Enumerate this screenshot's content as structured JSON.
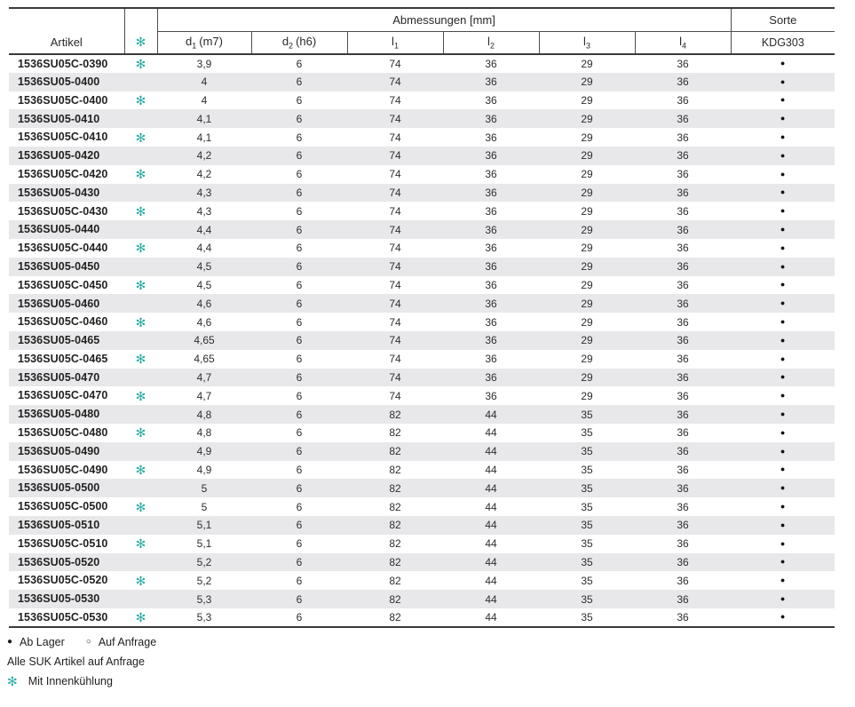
{
  "colors": {
    "accent_teal": "#2aada5",
    "stripe_gray": "#e8e8ea",
    "border_dark": "#3a3a3a"
  },
  "table": {
    "artikel_header": "Artikel",
    "cooling_symbol": "✻",
    "group_header": "Abmessungen [mm]",
    "sorte_header": "Sorte",
    "sorte_sub_header": "KDG303",
    "stock_symbol": "●",
    "dim_columns": [
      {
        "base": "d",
        "sub": "1",
        "suffix": "(m7)"
      },
      {
        "base": "d",
        "sub": "2",
        "suffix": "(h6)"
      },
      {
        "base": "l",
        "sub": "1",
        "suffix": ""
      },
      {
        "base": "l",
        "sub": "2",
        "suffix": ""
      },
      {
        "base": "l",
        "sub": "3",
        "suffix": ""
      },
      {
        "base": "l",
        "sub": "4",
        "suffix": ""
      }
    ],
    "rows": [
      {
        "artikel": "1536SU05C-0390",
        "cooled": true,
        "d1": "3,9",
        "d2": "6",
        "l1": "74",
        "l2": "36",
        "l3": "29",
        "l4": "36",
        "sorte": "stock"
      },
      {
        "artikel": "1536SU05-0400",
        "cooled": false,
        "d1": "4",
        "d2": "6",
        "l1": "74",
        "l2": "36",
        "l3": "29",
        "l4": "36",
        "sorte": "stock"
      },
      {
        "artikel": "1536SU05C-0400",
        "cooled": true,
        "d1": "4",
        "d2": "6",
        "l1": "74",
        "l2": "36",
        "l3": "29",
        "l4": "36",
        "sorte": "stock"
      },
      {
        "artikel": "1536SU05-0410",
        "cooled": false,
        "d1": "4,1",
        "d2": "6",
        "l1": "74",
        "l2": "36",
        "l3": "29",
        "l4": "36",
        "sorte": "stock"
      },
      {
        "artikel": "1536SU05C-0410",
        "cooled": true,
        "d1": "4,1",
        "d2": "6",
        "l1": "74",
        "l2": "36",
        "l3": "29",
        "l4": "36",
        "sorte": "stock"
      },
      {
        "artikel": "1536SU05-0420",
        "cooled": false,
        "d1": "4,2",
        "d2": "6",
        "l1": "74",
        "l2": "36",
        "l3": "29",
        "l4": "36",
        "sorte": "stock"
      },
      {
        "artikel": "1536SU05C-0420",
        "cooled": true,
        "d1": "4,2",
        "d2": "6",
        "l1": "74",
        "l2": "36",
        "l3": "29",
        "l4": "36",
        "sorte": "stock"
      },
      {
        "artikel": "1536SU05-0430",
        "cooled": false,
        "d1": "4,3",
        "d2": "6",
        "l1": "74",
        "l2": "36",
        "l3": "29",
        "l4": "36",
        "sorte": "stock"
      },
      {
        "artikel": "1536SU05C-0430",
        "cooled": true,
        "d1": "4,3",
        "d2": "6",
        "l1": "74",
        "l2": "36",
        "l3": "29",
        "l4": "36",
        "sorte": "stock"
      },
      {
        "artikel": "1536SU05-0440",
        "cooled": false,
        "d1": "4,4",
        "d2": "6",
        "l1": "74",
        "l2": "36",
        "l3": "29",
        "l4": "36",
        "sorte": "stock"
      },
      {
        "artikel": "1536SU05C-0440",
        "cooled": true,
        "d1": "4,4",
        "d2": "6",
        "l1": "74",
        "l2": "36",
        "l3": "29",
        "l4": "36",
        "sorte": "stock"
      },
      {
        "artikel": "1536SU05-0450",
        "cooled": false,
        "d1": "4,5",
        "d2": "6",
        "l1": "74",
        "l2": "36",
        "l3": "29",
        "l4": "36",
        "sorte": "stock"
      },
      {
        "artikel": "1536SU05C-0450",
        "cooled": true,
        "d1": "4,5",
        "d2": "6",
        "l1": "74",
        "l2": "36",
        "l3": "29",
        "l4": "36",
        "sorte": "stock"
      },
      {
        "artikel": "1536SU05-0460",
        "cooled": false,
        "d1": "4,6",
        "d2": "6",
        "l1": "74",
        "l2": "36",
        "l3": "29",
        "l4": "36",
        "sorte": "stock"
      },
      {
        "artikel": "1536SU05C-0460",
        "cooled": true,
        "d1": "4,6",
        "d2": "6",
        "l1": "74",
        "l2": "36",
        "l3": "29",
        "l4": "36",
        "sorte": "stock"
      },
      {
        "artikel": "1536SU05-0465",
        "cooled": false,
        "d1": "4,65",
        "d2": "6",
        "l1": "74",
        "l2": "36",
        "l3": "29",
        "l4": "36",
        "sorte": "stock"
      },
      {
        "artikel": "1536SU05C-0465",
        "cooled": true,
        "d1": "4,65",
        "d2": "6",
        "l1": "74",
        "l2": "36",
        "l3": "29",
        "l4": "36",
        "sorte": "stock"
      },
      {
        "artikel": "1536SU05-0470",
        "cooled": false,
        "d1": "4,7",
        "d2": "6",
        "l1": "74",
        "l2": "36",
        "l3": "29",
        "l4": "36",
        "sorte": "stock"
      },
      {
        "artikel": "1536SU05C-0470",
        "cooled": true,
        "d1": "4,7",
        "d2": "6",
        "l1": "74",
        "l2": "36",
        "l3": "29",
        "l4": "36",
        "sorte": "stock"
      },
      {
        "artikel": "1536SU05-0480",
        "cooled": false,
        "d1": "4,8",
        "d2": "6",
        "l1": "82",
        "l2": "44",
        "l3": "35",
        "l4": "36",
        "sorte": "stock"
      },
      {
        "artikel": "1536SU05C-0480",
        "cooled": true,
        "d1": "4,8",
        "d2": "6",
        "l1": "82",
        "l2": "44",
        "l3": "35",
        "l4": "36",
        "sorte": "stock"
      },
      {
        "artikel": "1536SU05-0490",
        "cooled": false,
        "d1": "4,9",
        "d2": "6",
        "l1": "82",
        "l2": "44",
        "l3": "35",
        "l4": "36",
        "sorte": "stock"
      },
      {
        "artikel": "1536SU05C-0490",
        "cooled": true,
        "d1": "4,9",
        "d2": "6",
        "l1": "82",
        "l2": "44",
        "l3": "35",
        "l4": "36",
        "sorte": "stock"
      },
      {
        "artikel": "1536SU05-0500",
        "cooled": false,
        "d1": "5",
        "d2": "6",
        "l1": "82",
        "l2": "44",
        "l3": "35",
        "l4": "36",
        "sorte": "stock"
      },
      {
        "artikel": "1536SU05C-0500",
        "cooled": true,
        "d1": "5",
        "d2": "6",
        "l1": "82",
        "l2": "44",
        "l3": "35",
        "l4": "36",
        "sorte": "stock"
      },
      {
        "artikel": "1536SU05-0510",
        "cooled": false,
        "d1": "5,1",
        "d2": "6",
        "l1": "82",
        "l2": "44",
        "l3": "35",
        "l4": "36",
        "sorte": "stock"
      },
      {
        "artikel": "1536SU05C-0510",
        "cooled": true,
        "d1": "5,1",
        "d2": "6",
        "l1": "82",
        "l2": "44",
        "l3": "35",
        "l4": "36",
        "sorte": "stock"
      },
      {
        "artikel": "1536SU05-0520",
        "cooled": false,
        "d1": "5,2",
        "d2": "6",
        "l1": "82",
        "l2": "44",
        "l3": "35",
        "l4": "36",
        "sorte": "stock"
      },
      {
        "artikel": "1536SU05C-0520",
        "cooled": true,
        "d1": "5,2",
        "d2": "6",
        "l1": "82",
        "l2": "44",
        "l3": "35",
        "l4": "36",
        "sorte": "stock"
      },
      {
        "artikel": "1536SU05-0530",
        "cooled": false,
        "d1": "5,3",
        "d2": "6",
        "l1": "82",
        "l2": "44",
        "l3": "35",
        "l4": "36",
        "sorte": "stock"
      },
      {
        "artikel": "1536SU05C-0530",
        "cooled": true,
        "d1": "5,3",
        "d2": "6",
        "l1": "82",
        "l2": "44",
        "l3": "35",
        "l4": "36",
        "sorte": "stock"
      }
    ]
  },
  "footer": {
    "stock_symbol": "●",
    "stock_label": "Ab Lager",
    "request_symbol": "○",
    "request_label": "Auf Anfrage",
    "note": "Alle SUK Artikel auf Anfrage",
    "cooling_symbol": "✻",
    "cooling_label": "Mit Innenkühlung"
  }
}
